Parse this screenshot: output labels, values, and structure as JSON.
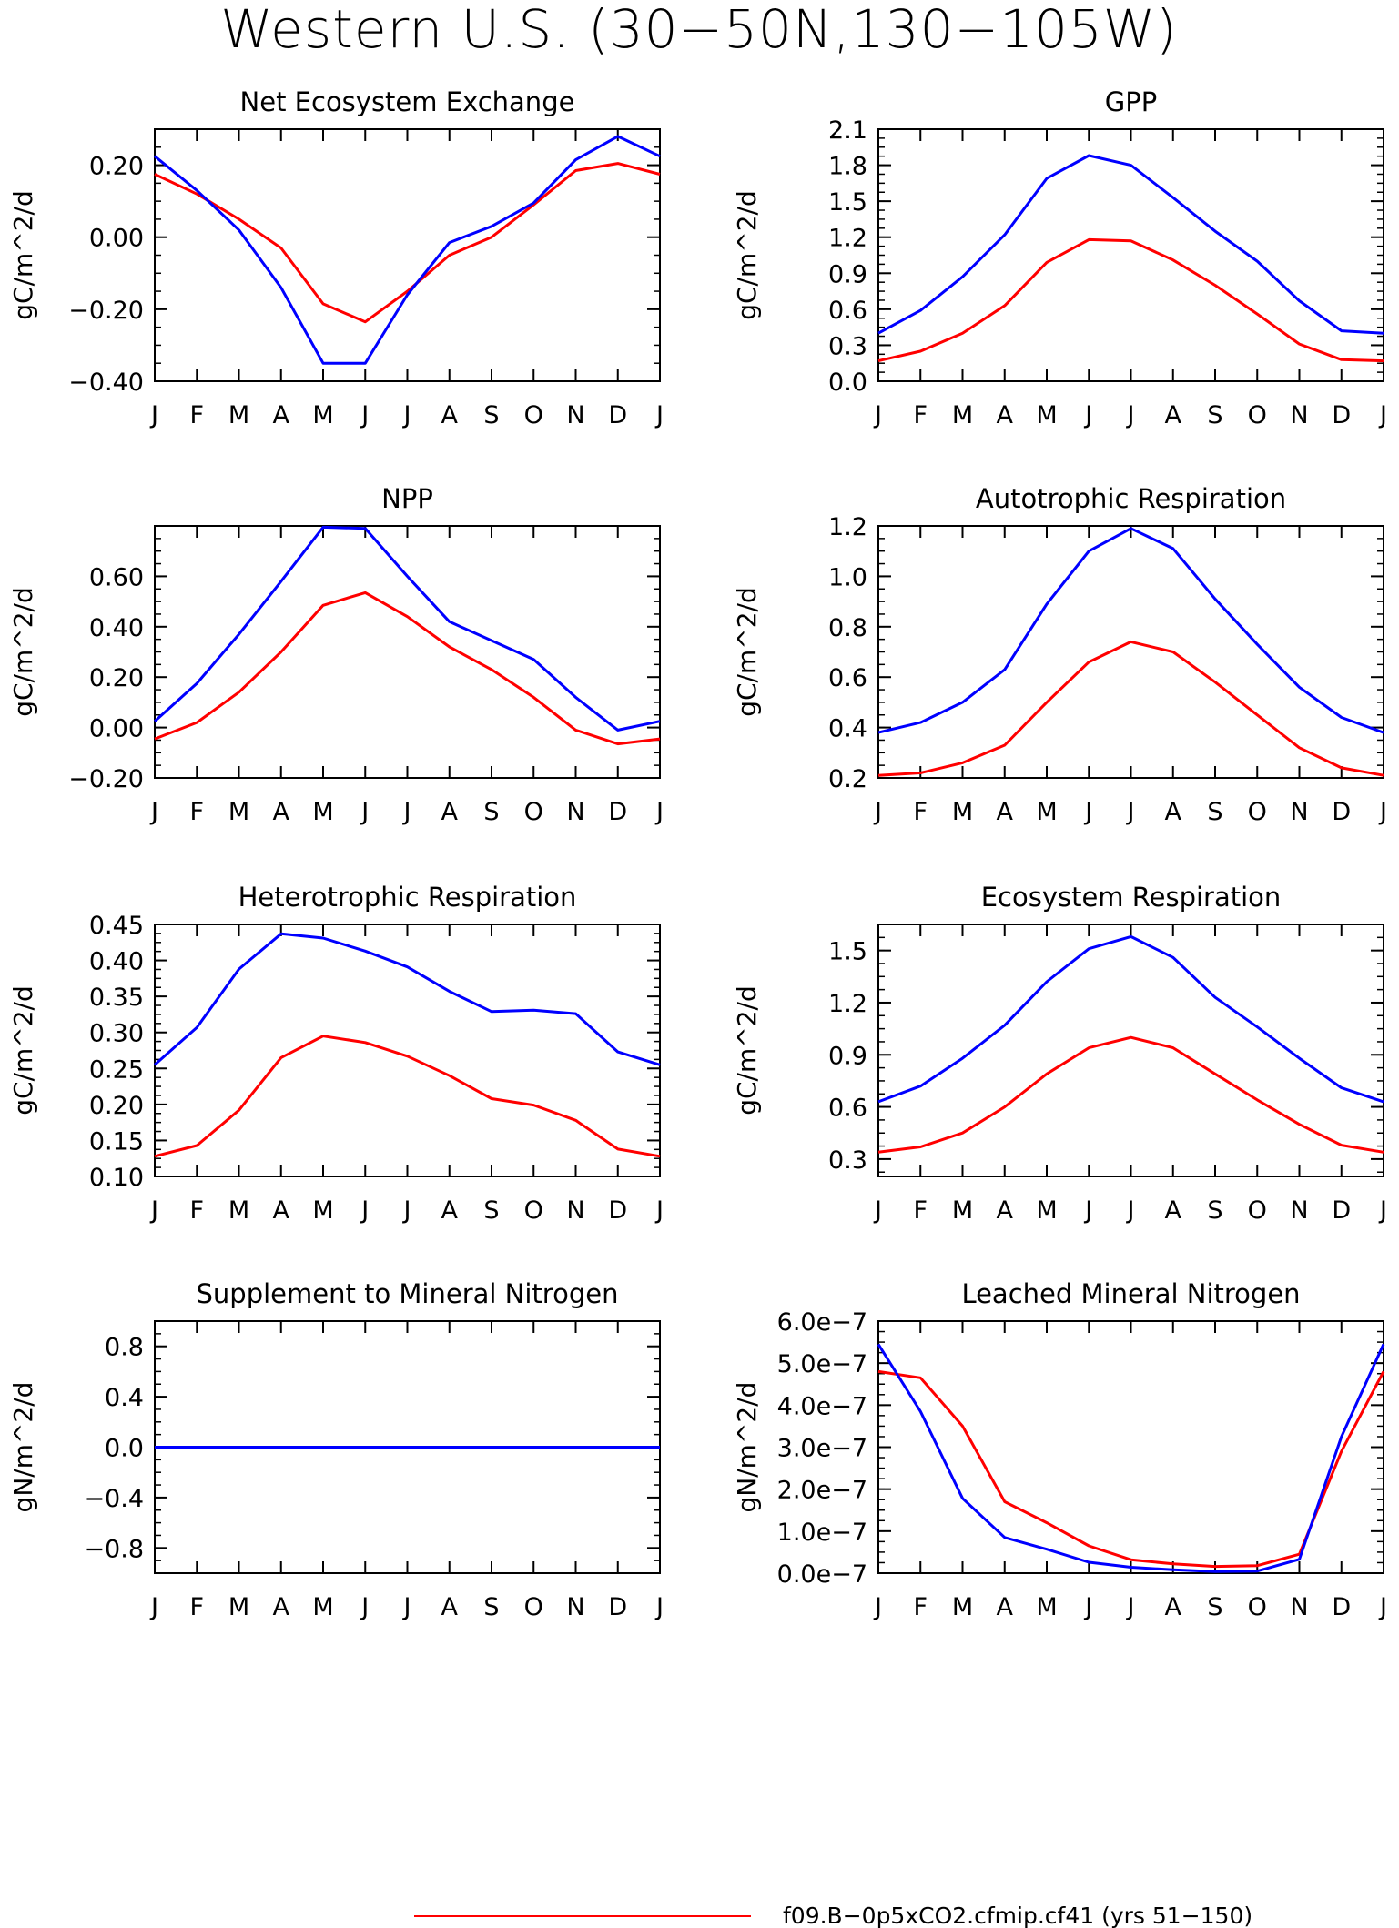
{
  "title": "Western U.S. (30−50N,130−105W)",
  "months": [
    "J",
    "F",
    "M",
    "A",
    "M",
    "J",
    "J",
    "A",
    "S",
    "O",
    "N",
    "D",
    "J"
  ],
  "colors": {
    "red": "#ff0000",
    "blue": "#0000ff",
    "frame": "#000000"
  },
  "legend": {
    "red_label": "f09.B−0p5xCO2.cfmip.cf41 (yrs 51−150)"
  },
  "chart_data": [
    {
      "type": "line",
      "title": "Net Ecosystem Exchange",
      "ylabel": "gC/m^2/d",
      "ylim": [
        -0.4,
        0.3
      ],
      "yticks": [
        -0.4,
        -0.2,
        0.0,
        0.2
      ],
      "yticklabels": [
        "−0.40",
        "−0.20",
        "0.00",
        "0.20"
      ],
      "series": [
        {
          "color": "red",
          "values": [
            0.175,
            0.12,
            0.05,
            -0.03,
            -0.185,
            -0.235,
            -0.15,
            -0.05,
            0.0,
            0.09,
            0.185,
            0.205,
            0.175
          ]
        },
        {
          "color": "blue",
          "values": [
            0.225,
            0.13,
            0.02,
            -0.14,
            -0.35,
            -0.35,
            -0.16,
            -0.015,
            0.03,
            0.095,
            0.215,
            0.28,
            0.225
          ]
        }
      ]
    },
    {
      "type": "line",
      "title": "GPP",
      "ylabel": "gC/m^2/d",
      "ylim": [
        0.0,
        2.1
      ],
      "yticks": [
        0.0,
        0.3,
        0.6,
        0.9,
        1.2,
        1.5,
        1.8,
        2.1
      ],
      "yticklabels": [
        "0.0",
        "0.3",
        "0.6",
        "0.9",
        "1.2",
        "1.5",
        "1.8",
        "2.1"
      ],
      "series": [
        {
          "color": "red",
          "values": [
            0.17,
            0.25,
            0.4,
            0.63,
            0.99,
            1.18,
            1.17,
            1.01,
            0.8,
            0.56,
            0.31,
            0.18,
            0.17
          ]
        },
        {
          "color": "blue",
          "values": [
            0.4,
            0.59,
            0.87,
            1.22,
            1.69,
            1.88,
            1.8,
            1.53,
            1.25,
            1.0,
            0.67,
            0.42,
            0.4
          ]
        }
      ]
    },
    {
      "type": "line",
      "title": "NPP",
      "ylabel": "gC/m^2/d",
      "ylim": [
        -0.2,
        0.8
      ],
      "yticks": [
        -0.2,
        0.0,
        0.2,
        0.4,
        0.6
      ],
      "yticklabels": [
        "−0.20",
        "0.00",
        "0.20",
        "0.40",
        "0.60"
      ],
      "series": [
        {
          "color": "red",
          "values": [
            -0.045,
            0.02,
            0.14,
            0.3,
            0.485,
            0.535,
            0.44,
            0.32,
            0.23,
            0.12,
            -0.01,
            -0.065,
            -0.045
          ]
        },
        {
          "color": "blue",
          "values": [
            0.025,
            0.175,
            0.37,
            0.58,
            0.795,
            0.79,
            0.6,
            0.42,
            0.345,
            0.27,
            0.12,
            -0.01,
            0.025
          ]
        }
      ]
    },
    {
      "type": "line",
      "title": "Autotrophic Respiration",
      "ylabel": "gC/m^2/d",
      "ylim": [
        0.2,
        1.2
      ],
      "yticks": [
        0.2,
        0.4,
        0.6,
        0.8,
        1.0,
        1.2
      ],
      "yticklabels": [
        "0.2",
        "0.4",
        "0.6",
        "0.8",
        "1.0",
        "1.2"
      ],
      "series": [
        {
          "color": "red",
          "values": [
            0.21,
            0.22,
            0.26,
            0.33,
            0.5,
            0.66,
            0.74,
            0.7,
            0.58,
            0.45,
            0.32,
            0.24,
            0.21
          ]
        },
        {
          "color": "blue",
          "values": [
            0.38,
            0.42,
            0.5,
            0.63,
            0.89,
            1.1,
            1.19,
            1.11,
            0.91,
            0.73,
            0.56,
            0.44,
            0.38
          ]
        }
      ]
    },
    {
      "type": "line",
      "title": "Heterotrophic Respiration",
      "ylabel": "gC/m^2/d",
      "ylim": [
        0.1,
        0.45
      ],
      "yticks": [
        0.1,
        0.15,
        0.2,
        0.25,
        0.3,
        0.35,
        0.4,
        0.45
      ],
      "yticklabels": [
        "0.10",
        "0.15",
        "0.20",
        "0.25",
        "0.30",
        "0.35",
        "0.40",
        "0.45"
      ],
      "series": [
        {
          "color": "red",
          "values": [
            0.128,
            0.143,
            0.192,
            0.265,
            0.295,
            0.286,
            0.267,
            0.24,
            0.208,
            0.199,
            0.178,
            0.138,
            0.128
          ]
        },
        {
          "color": "blue",
          "values": [
            0.255,
            0.307,
            0.388,
            0.437,
            0.431,
            0.413,
            0.391,
            0.357,
            0.329,
            0.331,
            0.326,
            0.273,
            0.255
          ]
        }
      ]
    },
    {
      "type": "line",
      "title": "Ecosystem Respiration",
      "ylabel": "gC/m^2/d",
      "ylim": [
        0.2,
        1.65
      ],
      "yticks": [
        0.3,
        0.6,
        0.9,
        1.2,
        1.5
      ],
      "yticklabels": [
        "0.3",
        "0.6",
        "0.9",
        "1.2",
        "1.5"
      ],
      "series": [
        {
          "color": "red",
          "values": [
            0.34,
            0.37,
            0.45,
            0.6,
            0.79,
            0.94,
            1.0,
            0.94,
            0.79,
            0.64,
            0.5,
            0.38,
            0.34
          ]
        },
        {
          "color": "blue",
          "values": [
            0.63,
            0.72,
            0.88,
            1.07,
            1.32,
            1.51,
            1.58,
            1.46,
            1.23,
            1.06,
            0.88,
            0.71,
            0.63
          ]
        }
      ]
    },
    {
      "type": "line",
      "title": "Supplement to Mineral Nitrogen",
      "ylabel": "gN/m^2/d",
      "ylim": [
        -1.0,
        1.0
      ],
      "yticks": [
        -0.8,
        -0.4,
        0.0,
        0.4,
        0.8
      ],
      "yticklabels": [
        "−0.8",
        "−0.4",
        "0.0",
        "0.4",
        "0.8"
      ],
      "series": [
        {
          "color": "red",
          "values": [
            0,
            0,
            0,
            0,
            0,
            0,
            0,
            0,
            0,
            0,
            0,
            0,
            0
          ]
        },
        {
          "color": "blue",
          "values": [
            0,
            0,
            0,
            0,
            0,
            0,
            0,
            0,
            0,
            0,
            0,
            0,
            0
          ]
        }
      ]
    },
    {
      "type": "line",
      "title": "Leached Mineral Nitrogen",
      "ylabel": "gN/m^2/d",
      "ylim": [
        0.0,
        6e-07
      ],
      "yticks": [
        0.0,
        1e-07,
        2e-07,
        3e-07,
        4e-07,
        5e-07,
        6e-07
      ],
      "yticklabels": [
        "0.0e−7",
        "1.0e−7",
        "2.0e−7",
        "3.0e−7",
        "4.0e−7",
        "5.0e−7",
        "6.0e−7"
      ],
      "series": [
        {
          "color": "red",
          "values": [
            4.8e-07,
            4.65e-07,
            3.5e-07,
            1.7e-07,
            1.2e-07,
            6.5e-08,
            3.2e-08,
            2.2e-08,
            1.6e-08,
            1.8e-08,
            4.5e-08,
            2.9e-07,
            4.8e-07
          ]
        },
        {
          "color": "blue",
          "values": [
            5.45e-07,
            3.85e-07,
            1.78e-07,
            8.5e-08,
            5.7e-08,
            2.6e-08,
            1.4e-08,
            8e-09,
            4e-09,
            5e-09,
            3.3e-08,
            3.25e-07,
            5.45e-07
          ]
        }
      ]
    }
  ]
}
